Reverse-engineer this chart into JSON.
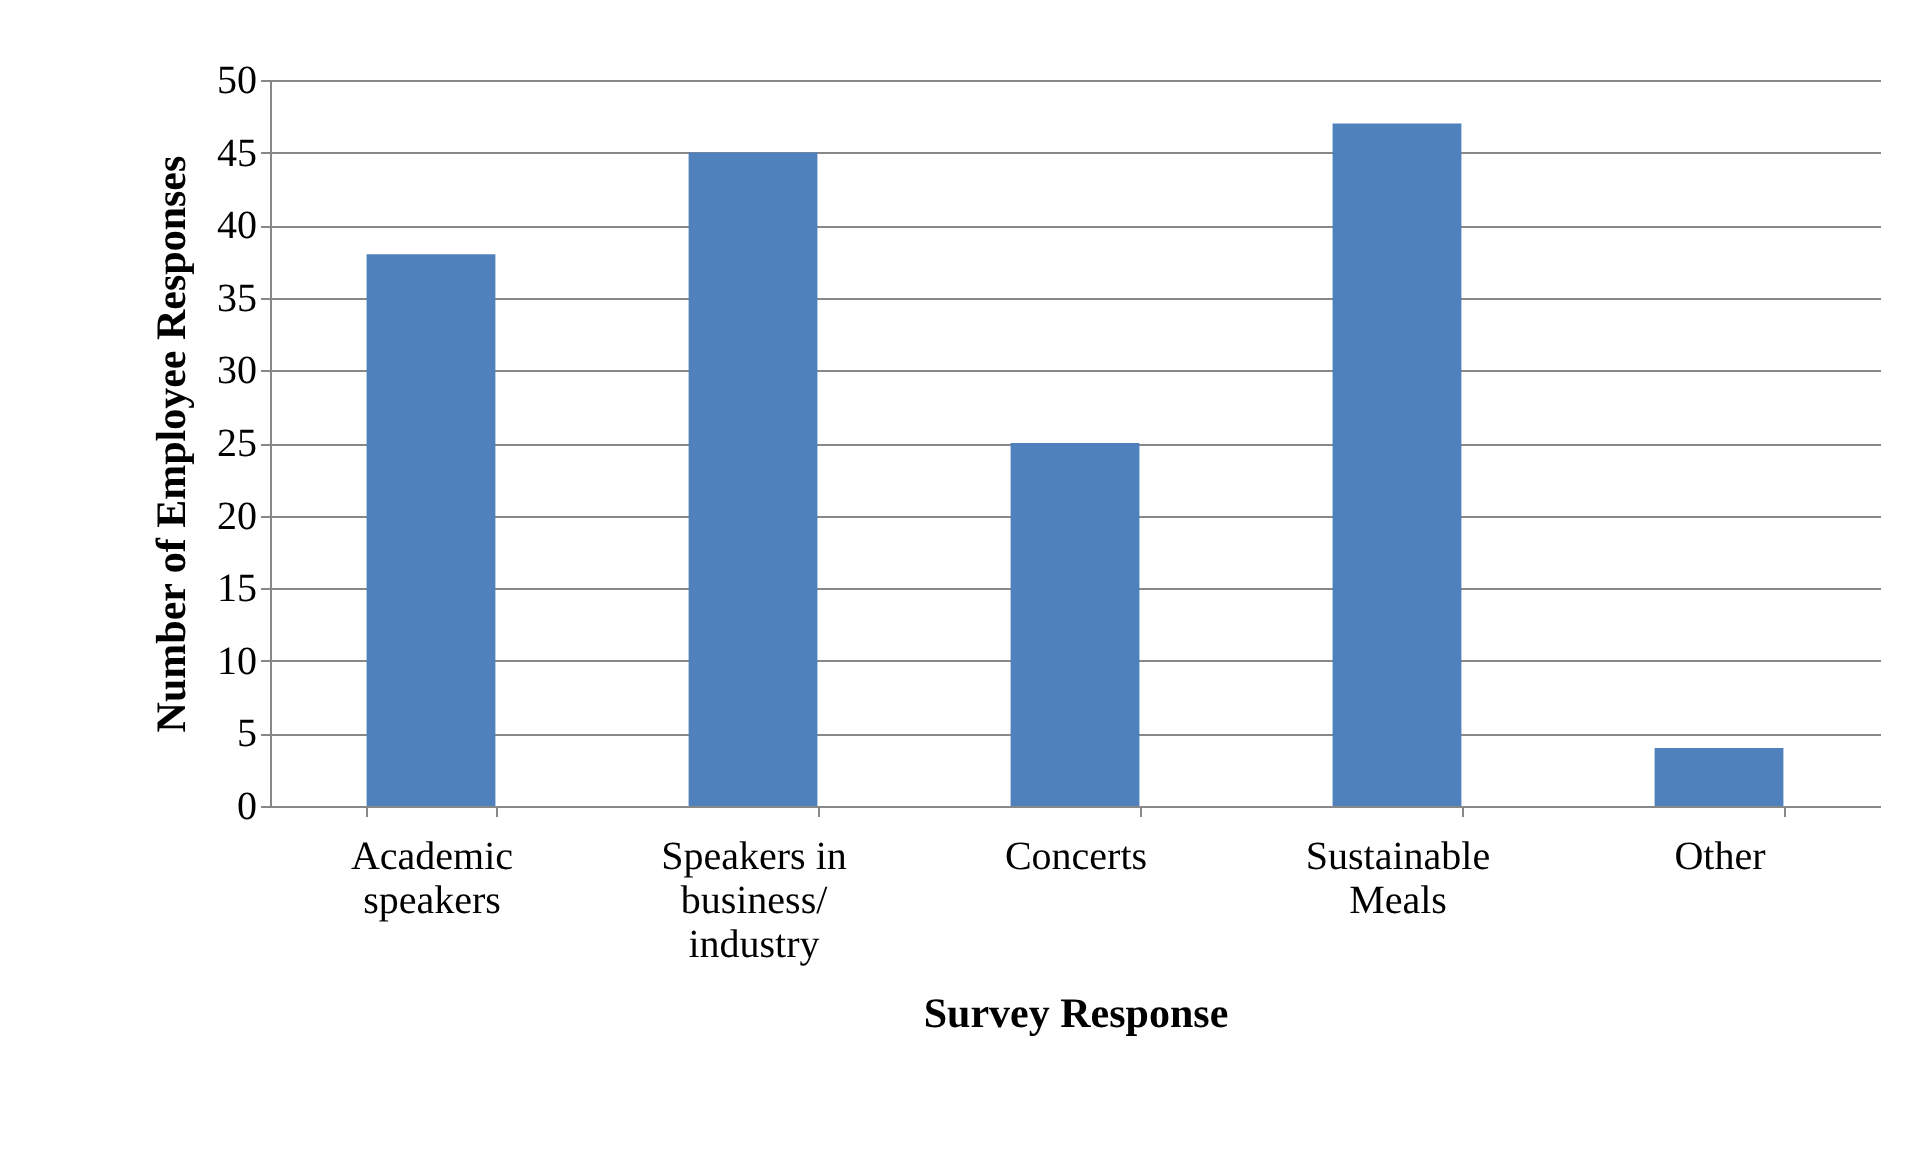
{
  "chart_data": {
    "type": "bar",
    "xlabel": "Survey Response",
    "ylabel": "Number of Employee Responses",
    "categories": [
      "Academic\nspeakers",
      "Speakers in\nbusiness/\nindustry",
      "Concerts",
      "Sustainable\nMeals",
      "Other"
    ],
    "values": [
      38,
      45,
      25,
      47,
      4
    ],
    "color": "#4f81bd",
    "ylim": [
      0,
      50
    ],
    "yticks": [
      0,
      5,
      10,
      15,
      20,
      25,
      30,
      35,
      40,
      45,
      50
    ],
    "grid": "y"
  }
}
